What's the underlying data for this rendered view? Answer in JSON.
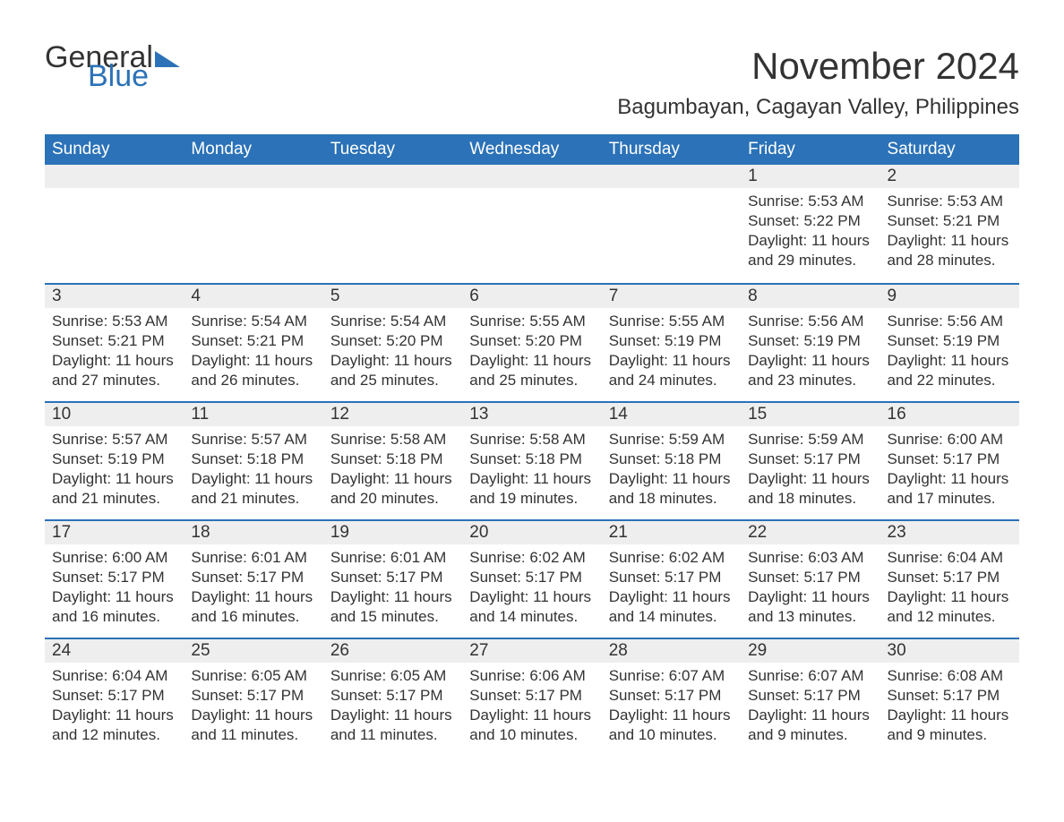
{
  "brand": {
    "part1": "General",
    "part2": "Blue"
  },
  "title": "November 2024",
  "subtitle": "Bagumbayan, Cagayan Valley, Philippines",
  "colors": {
    "header_bg": "#2b72b8",
    "header_fg": "#ffffff",
    "daynum_bg": "#eeeeee",
    "border_top": "#2b72b8",
    "page_bg": "#ffffff",
    "text": "#333333",
    "brand_blue": "#2b72b8"
  },
  "fonts": {
    "family": "Arial",
    "title_size_pt": 32,
    "subtitle_size_pt": 18,
    "header_size_pt": 14,
    "body_size_pt": 13
  },
  "layout": {
    "columns": 7,
    "rows": 5,
    "aspect": "1188x918"
  },
  "weekdays": [
    "Sunday",
    "Monday",
    "Tuesday",
    "Wednesday",
    "Thursday",
    "Friday",
    "Saturday"
  ],
  "days": [
    {
      "n": "",
      "sr": "",
      "ss": "",
      "dl": ""
    },
    {
      "n": "",
      "sr": "",
      "ss": "",
      "dl": ""
    },
    {
      "n": "",
      "sr": "",
      "ss": "",
      "dl": ""
    },
    {
      "n": "",
      "sr": "",
      "ss": "",
      "dl": ""
    },
    {
      "n": "",
      "sr": "",
      "ss": "",
      "dl": ""
    },
    {
      "n": "1",
      "sr": "Sunrise: 5:53 AM",
      "ss": "Sunset: 5:22 PM",
      "dl": "Daylight: 11 hours and 29 minutes."
    },
    {
      "n": "2",
      "sr": "Sunrise: 5:53 AM",
      "ss": "Sunset: 5:21 PM",
      "dl": "Daylight: 11 hours and 28 minutes."
    },
    {
      "n": "3",
      "sr": "Sunrise: 5:53 AM",
      "ss": "Sunset: 5:21 PM",
      "dl": "Daylight: 11 hours and 27 minutes."
    },
    {
      "n": "4",
      "sr": "Sunrise: 5:54 AM",
      "ss": "Sunset: 5:21 PM",
      "dl": "Daylight: 11 hours and 26 minutes."
    },
    {
      "n": "5",
      "sr": "Sunrise: 5:54 AM",
      "ss": "Sunset: 5:20 PM",
      "dl": "Daylight: 11 hours and 25 minutes."
    },
    {
      "n": "6",
      "sr": "Sunrise: 5:55 AM",
      "ss": "Sunset: 5:20 PM",
      "dl": "Daylight: 11 hours and 25 minutes."
    },
    {
      "n": "7",
      "sr": "Sunrise: 5:55 AM",
      "ss": "Sunset: 5:19 PM",
      "dl": "Daylight: 11 hours and 24 minutes."
    },
    {
      "n": "8",
      "sr": "Sunrise: 5:56 AM",
      "ss": "Sunset: 5:19 PM",
      "dl": "Daylight: 11 hours and 23 minutes."
    },
    {
      "n": "9",
      "sr": "Sunrise: 5:56 AM",
      "ss": "Sunset: 5:19 PM",
      "dl": "Daylight: 11 hours and 22 minutes."
    },
    {
      "n": "10",
      "sr": "Sunrise: 5:57 AM",
      "ss": "Sunset: 5:19 PM",
      "dl": "Daylight: 11 hours and 21 minutes."
    },
    {
      "n": "11",
      "sr": "Sunrise: 5:57 AM",
      "ss": "Sunset: 5:18 PM",
      "dl": "Daylight: 11 hours and 21 minutes."
    },
    {
      "n": "12",
      "sr": "Sunrise: 5:58 AM",
      "ss": "Sunset: 5:18 PM",
      "dl": "Daylight: 11 hours and 20 minutes."
    },
    {
      "n": "13",
      "sr": "Sunrise: 5:58 AM",
      "ss": "Sunset: 5:18 PM",
      "dl": "Daylight: 11 hours and 19 minutes."
    },
    {
      "n": "14",
      "sr": "Sunrise: 5:59 AM",
      "ss": "Sunset: 5:18 PM",
      "dl": "Daylight: 11 hours and 18 minutes."
    },
    {
      "n": "15",
      "sr": "Sunrise: 5:59 AM",
      "ss": "Sunset: 5:17 PM",
      "dl": "Daylight: 11 hours and 18 minutes."
    },
    {
      "n": "16",
      "sr": "Sunrise: 6:00 AM",
      "ss": "Sunset: 5:17 PM",
      "dl": "Daylight: 11 hours and 17 minutes."
    },
    {
      "n": "17",
      "sr": "Sunrise: 6:00 AM",
      "ss": "Sunset: 5:17 PM",
      "dl": "Daylight: 11 hours and 16 minutes."
    },
    {
      "n": "18",
      "sr": "Sunrise: 6:01 AM",
      "ss": "Sunset: 5:17 PM",
      "dl": "Daylight: 11 hours and 16 minutes."
    },
    {
      "n": "19",
      "sr": "Sunrise: 6:01 AM",
      "ss": "Sunset: 5:17 PM",
      "dl": "Daylight: 11 hours and 15 minutes."
    },
    {
      "n": "20",
      "sr": "Sunrise: 6:02 AM",
      "ss": "Sunset: 5:17 PM",
      "dl": "Daylight: 11 hours and 14 minutes."
    },
    {
      "n": "21",
      "sr": "Sunrise: 6:02 AM",
      "ss": "Sunset: 5:17 PM",
      "dl": "Daylight: 11 hours and 14 minutes."
    },
    {
      "n": "22",
      "sr": "Sunrise: 6:03 AM",
      "ss": "Sunset: 5:17 PM",
      "dl": "Daylight: 11 hours and 13 minutes."
    },
    {
      "n": "23",
      "sr": "Sunrise: 6:04 AM",
      "ss": "Sunset: 5:17 PM",
      "dl": "Daylight: 11 hours and 12 minutes."
    },
    {
      "n": "24",
      "sr": "Sunrise: 6:04 AM",
      "ss": "Sunset: 5:17 PM",
      "dl": "Daylight: 11 hours and 12 minutes."
    },
    {
      "n": "25",
      "sr": "Sunrise: 6:05 AM",
      "ss": "Sunset: 5:17 PM",
      "dl": "Daylight: 11 hours and 11 minutes."
    },
    {
      "n": "26",
      "sr": "Sunrise: 6:05 AM",
      "ss": "Sunset: 5:17 PM",
      "dl": "Daylight: 11 hours and 11 minutes."
    },
    {
      "n": "27",
      "sr": "Sunrise: 6:06 AM",
      "ss": "Sunset: 5:17 PM",
      "dl": "Daylight: 11 hours and 10 minutes."
    },
    {
      "n": "28",
      "sr": "Sunrise: 6:07 AM",
      "ss": "Sunset: 5:17 PM",
      "dl": "Daylight: 11 hours and 10 minutes."
    },
    {
      "n": "29",
      "sr": "Sunrise: 6:07 AM",
      "ss": "Sunset: 5:17 PM",
      "dl": "Daylight: 11 hours and 9 minutes."
    },
    {
      "n": "30",
      "sr": "Sunrise: 6:08 AM",
      "ss": "Sunset: 5:17 PM",
      "dl": "Daylight: 11 hours and 9 minutes."
    }
  ]
}
